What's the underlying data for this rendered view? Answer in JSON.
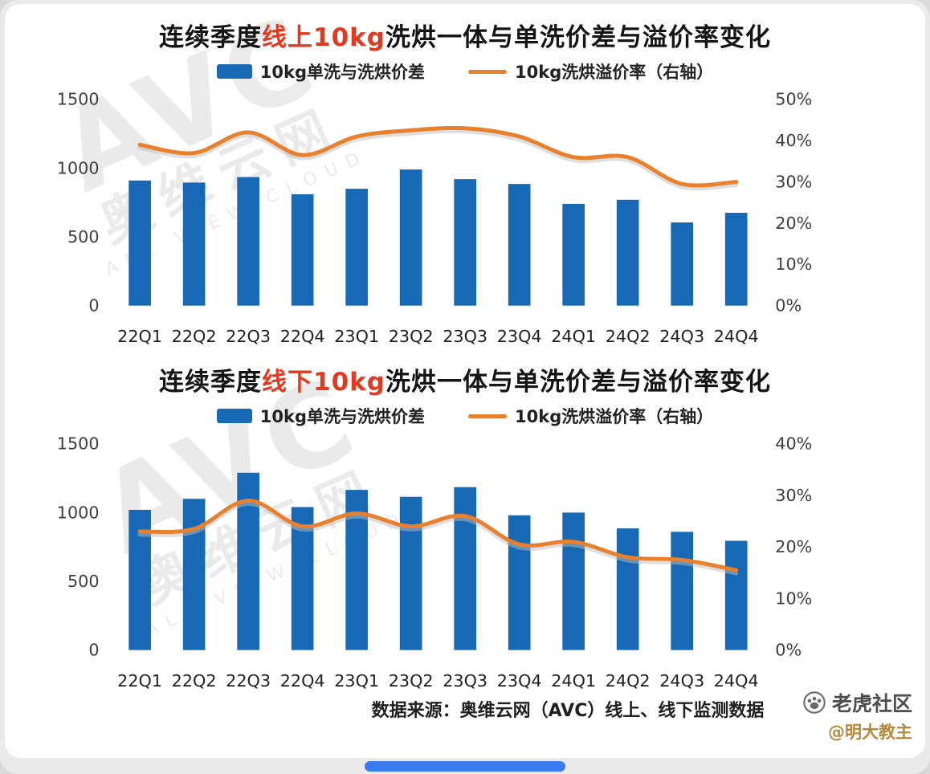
{
  "colors": {
    "bar": "#1769b5",
    "line": "#e8802d",
    "line_shadow": "#bdbdbd",
    "title_highlight": "#e23a20",
    "author": "#b5893c",
    "bottom_pill": "#3b7bf0"
  },
  "watermark": {
    "brand": "AVC",
    "cn": "奥维云网",
    "en": "ALL VIEW CLOUD"
  },
  "footer": {
    "source_text": "数据来源：奥维云网（AVC）线上、线下监测数据"
  },
  "branding": {
    "community": "老虎社区",
    "author": "@明大教主"
  },
  "chart_data": [
    {
      "type": "bar",
      "combo": "bar+line",
      "title": {
        "prefix": "连续季度",
        "highlight": "线上10kg",
        "suffix": "洗烘一体与单洗价差与溢价率变化"
      },
      "categories": [
        "22Q1",
        "22Q2",
        "22Q3",
        "22Q4",
        "23Q1",
        "23Q2",
        "23Q3",
        "23Q4",
        "24Q1",
        "24Q2",
        "24Q3",
        "24Q4"
      ],
      "series": [
        {
          "name": "10kg单洗与洗烘价差",
          "type": "bar",
          "axis": "left",
          "values": [
            910,
            895,
            935,
            810,
            850,
            990,
            920,
            885,
            740,
            770,
            605,
            675
          ]
        },
        {
          "name": "10kg洗烘溢价率（右轴）",
          "type": "line",
          "axis": "right",
          "values": [
            39,
            37,
            42,
            36.5,
            41,
            42.5,
            43,
            41,
            36,
            36,
            29.5,
            30
          ]
        }
      ],
      "left_axis": {
        "ticks": [
          0,
          500,
          1000,
          1500
        ],
        "min": 0,
        "max": 1500
      },
      "right_axis": {
        "ticks": [
          "0%",
          "10%",
          "20%",
          "30%",
          "40%",
          "50%"
        ],
        "min": 0,
        "max": 50
      },
      "grid": false,
      "legend_position": "top"
    },
    {
      "type": "bar",
      "combo": "bar+line",
      "title": {
        "prefix": "连续季度",
        "highlight": "线下10kg",
        "suffix": "洗烘一体与单洗价差与溢价率变化"
      },
      "categories": [
        "22Q1",
        "22Q2",
        "22Q3",
        "22Q4",
        "23Q1",
        "23Q2",
        "23Q3",
        "23Q4",
        "24Q1",
        "24Q2",
        "24Q3",
        "24Q4"
      ],
      "series": [
        {
          "name": "10kg单洗与洗烘价差",
          "type": "bar",
          "axis": "left",
          "values": [
            1020,
            1100,
            1290,
            1040,
            1165,
            1115,
            1185,
            980,
            1000,
            885,
            860,
            795
          ]
        },
        {
          "name": "10kg洗烘溢价率（右轴）",
          "type": "line",
          "axis": "right",
          "values": [
            23,
            23.5,
            29,
            24,
            26.5,
            24,
            26,
            20.5,
            21,
            18,
            17.5,
            15.5
          ]
        }
      ],
      "left_axis": {
        "ticks": [
          0,
          500,
          1000,
          1500
        ],
        "min": 0,
        "max": 1500
      },
      "right_axis": {
        "ticks": [
          "0%",
          "10%",
          "20%",
          "30%",
          "40%"
        ],
        "min": 0,
        "max": 40
      },
      "grid": false,
      "legend_position": "top"
    }
  ]
}
